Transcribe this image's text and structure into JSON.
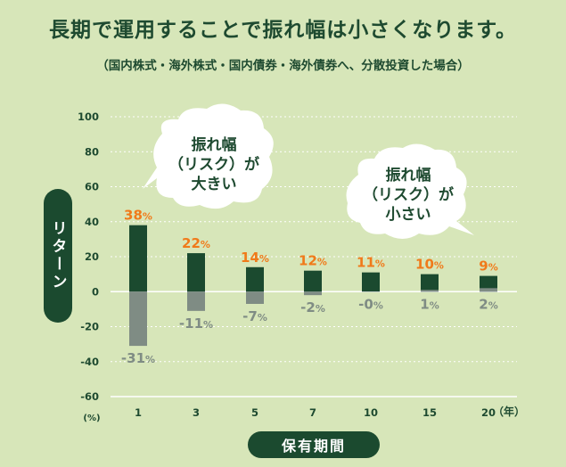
{
  "header": {
    "title": "長期で運用することで振れ幅は小さくなります。",
    "subtitle": "（国内株式・海外株式・国内債券・海外債券へ、分散投資した場合）"
  },
  "bubbles": [
    {
      "lines": [
        "振れ幅",
        "（リスク）が",
        "大きい"
      ]
    },
    {
      "lines": [
        "振れ幅",
        "（リスク）が",
        "小さい"
      ]
    }
  ],
  "chart_data": {
    "type": "bar",
    "xlabel": "保有期間",
    "ylabel": "リターン",
    "x_unit": "（年）",
    "y_unit": "(%)",
    "ylim": [
      -60,
      100
    ],
    "yticks": [
      100,
      80,
      60,
      40,
      20,
      0,
      -20,
      -40,
      -60
    ],
    "categories": [
      "1",
      "3",
      "5",
      "7",
      "10",
      "15",
      "20"
    ],
    "series": [
      {
        "values": [
          38,
          22,
          14,
          12,
          11,
          10,
          9
        ],
        "labels": [
          "38%",
          "22%",
          "14%",
          "12%",
          "11%",
          "10%",
          "9%"
        ],
        "color": "#1b4a2f",
        "label_color": "#f07a1a"
      },
      {
        "values": [
          -31,
          -11,
          -7,
          -2,
          0,
          1,
          2
        ],
        "labels": [
          "-31%",
          "-11%",
          "-7%",
          "-2%",
          "-0%",
          "1%",
          "2%"
        ],
        "color": "#7f8c84",
        "label_color": "#7f8c84"
      }
    ],
    "grid": true
  }
}
